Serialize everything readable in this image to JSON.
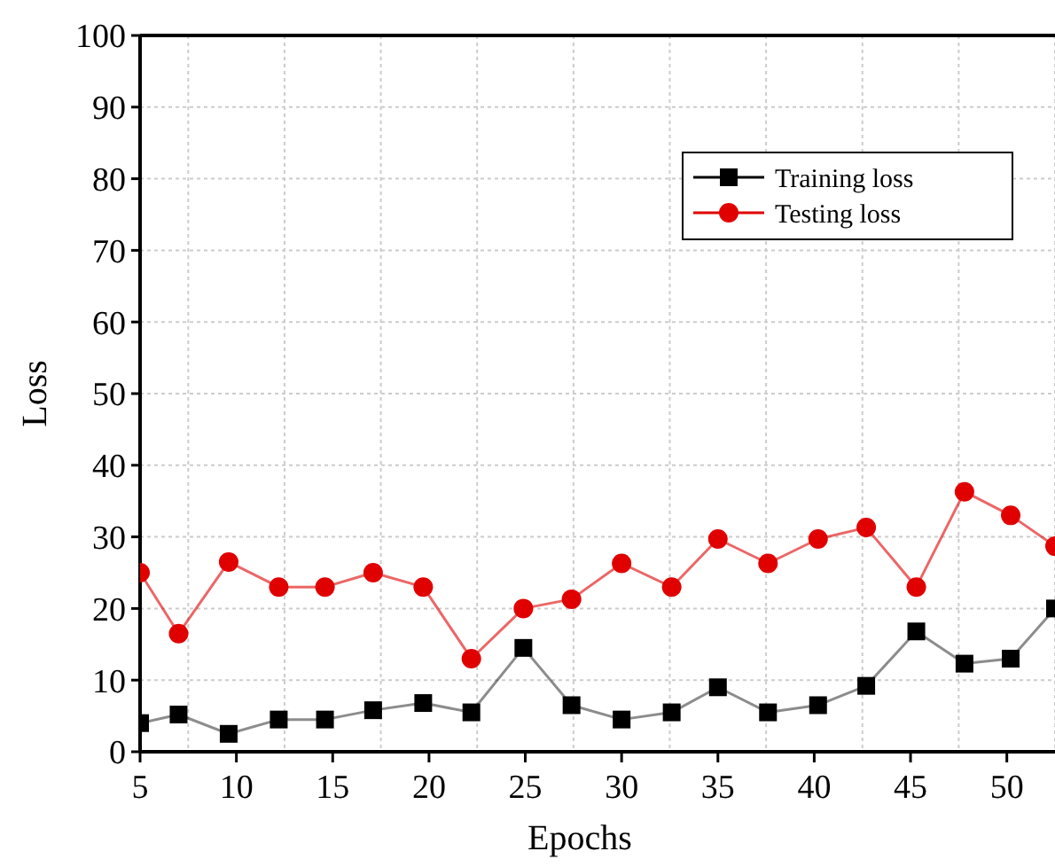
{
  "chart_data": {
    "type": "line",
    "xlabel": "Epochs",
    "ylabel": "Loss",
    "x": [
      5,
      7.0,
      9.6,
      12.2,
      14.6,
      17.1,
      19.7,
      22.2,
      24.9,
      27.4,
      30.0,
      32.6,
      35.0,
      37.6,
      40.2,
      42.7,
      45.3,
      47.8,
      50.2,
      52.5
    ],
    "series": [
      {
        "name": "Training loss",
        "color": "#000000",
        "marker": "square",
        "values": [
          4,
          5.2,
          2.5,
          4.5,
          4.5,
          5.8,
          6.8,
          5.5,
          14.5,
          6.5,
          4.5,
          5.5,
          9,
          5.5,
          6.5,
          9.2,
          16.8,
          12.3,
          13,
          20
        ]
      },
      {
        "name": "Testing loss",
        "color": "#e00000",
        "marker": "circle",
        "values": [
          25,
          16.5,
          26.5,
          23,
          23,
          25,
          23,
          13,
          20,
          21.3,
          26.3,
          23,
          29.7,
          26.3,
          29.7,
          31.3,
          23,
          36.3,
          33,
          28.7
        ]
      }
    ],
    "xlim": [
      5,
      52.5
    ],
    "xticks": [
      5,
      10,
      15,
      20,
      25,
      30,
      35,
      40,
      45,
      50
    ],
    "ylim": [
      0,
      100
    ],
    "yticks": [
      0,
      10,
      20,
      30,
      40,
      50,
      60,
      70,
      80,
      90,
      100
    ],
    "grid": true,
    "legend": "top right"
  }
}
